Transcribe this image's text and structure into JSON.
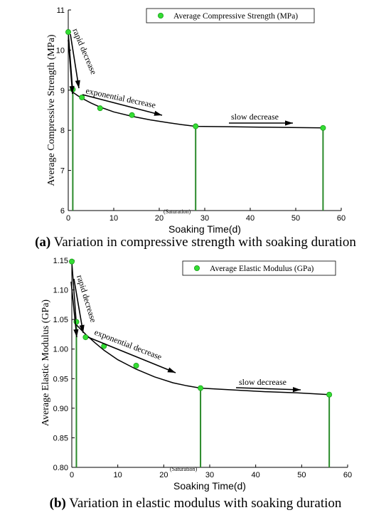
{
  "chart_data": [
    {
      "type": "scatter",
      "id": "a",
      "xlabel": "Soaking Time(d)",
      "ylabel": "Average Compressive Strength (MPa)",
      "xlim": [
        0,
        60
      ],
      "ylim": [
        6,
        11
      ],
      "xticks": [
        0,
        10,
        20,
        30,
        40,
        50,
        60
      ],
      "yticks": [
        6,
        7,
        8,
        9,
        10,
        11
      ],
      "grid": false,
      "legend_position": "top-right",
      "series": [
        {
          "name": "Average Compressive Strength (MPa)",
          "color": "#33dd33",
          "x": [
            0,
            1,
            3,
            7,
            14,
            28,
            56
          ],
          "y": [
            10.45,
            9.02,
            8.82,
            8.55,
            8.38,
            8.1,
            8.06
          ]
        }
      ],
      "fit_curve": {
        "x": [
          0,
          1,
          2,
          3,
          5,
          7,
          10,
          14,
          18,
          22,
          25,
          28,
          35,
          42,
          49,
          56
        ],
        "y": [
          10.45,
          8.95,
          8.87,
          8.8,
          8.68,
          8.58,
          8.46,
          8.35,
          8.26,
          8.19,
          8.14,
          8.1,
          8.09,
          8.08,
          8.07,
          8.06
        ]
      },
      "drop_lines_x": [
        1,
        28,
        56
      ],
      "annotations": {
        "rapid": "rapid decrease",
        "exponential": "exponential decrease",
        "slow": "slow decrease",
        "saturation": "(Saturation)"
      },
      "caption_label": "(a)",
      "caption_text": " Variation in compressive strength with soaking duration"
    },
    {
      "type": "scatter",
      "id": "b",
      "xlabel": "Soaking Time(d)",
      "ylabel": "Average Elastic Modulus (GPa)",
      "xlim": [
        0,
        60
      ],
      "ylim": [
        0.8,
        1.15
      ],
      "xticks": [
        0,
        10,
        20,
        30,
        40,
        50,
        60
      ],
      "yticks": [
        0.8,
        0.85,
        0.9,
        0.95,
        1.0,
        1.05,
        1.1,
        1.15
      ],
      "ytick_labels": [
        "0.80",
        "0.85",
        "0.90",
        "0.95",
        "1.00",
        "1.05",
        "1.10",
        "1.15"
      ],
      "grid": false,
      "legend_position": "top-right",
      "series": [
        {
          "name": "Average Elastic Modulus (GPa)",
          "color": "#33dd33",
          "x": [
            0,
            1,
            3,
            7,
            14,
            28,
            56
          ],
          "y": [
            1.148,
            1.046,
            1.02,
            1.005,
            0.972,
            0.934,
            0.923
          ]
        }
      ],
      "fit_curve": {
        "x": [
          0,
          1,
          2,
          3,
          5,
          7,
          10,
          14,
          18,
          22,
          25,
          28,
          35,
          42,
          49,
          56
        ],
        "y": [
          1.148,
          1.041,
          1.033,
          1.025,
          1.011,
          0.998,
          0.982,
          0.966,
          0.953,
          0.943,
          0.938,
          0.934,
          0.931,
          0.928,
          0.926,
          0.923
        ]
      },
      "drop_lines_x": [
        1,
        28,
        56
      ],
      "annotations": {
        "rapid": "rapid decrease",
        "exponential": "exponential decrease",
        "slow": "slow decrease",
        "saturation": "(Saturation)"
      },
      "caption_label": "(b)",
      "caption_text": " Variation in elastic modulus with soaking duration"
    }
  ]
}
